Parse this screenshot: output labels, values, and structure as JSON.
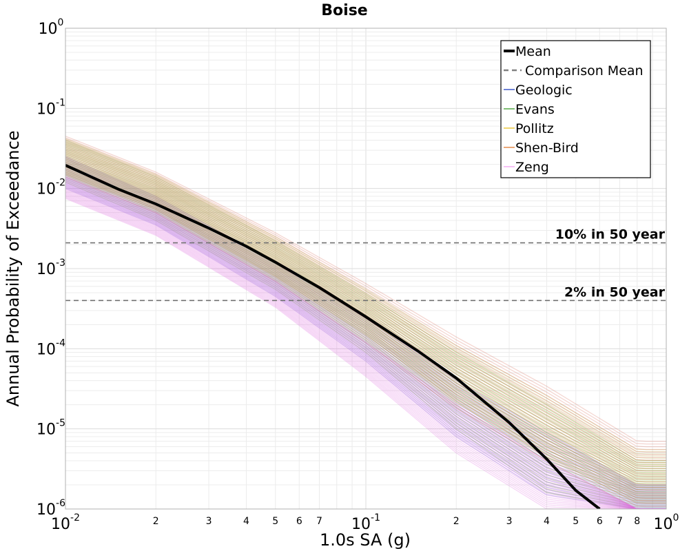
{
  "chart_data": {
    "type": "line",
    "title": "Boise",
    "xlabel": "1.0s SA (g)",
    "ylabel": "Annual Probability of Exceedance",
    "xscale": "log",
    "yscale": "log",
    "xlim": [
      0.01,
      1.0
    ],
    "ylim": [
      1e-06,
      1.0
    ],
    "grid": true,
    "legend_position": "top-right",
    "x_major_ticks": [
      {
        "value": 0.01,
        "base": "10",
        "exp": "-2"
      },
      {
        "value": 0.1,
        "base": "10",
        "exp": "-1"
      },
      {
        "value": 1.0,
        "base": "10",
        "exp": "0"
      }
    ],
    "x_minor_ticks": [
      {
        "value": 0.02,
        "label": "2"
      },
      {
        "value": 0.03,
        "label": "3"
      },
      {
        "value": 0.04,
        "label": "4"
      },
      {
        "value": 0.05,
        "label": "5"
      },
      {
        "value": 0.06,
        "label": "6"
      },
      {
        "value": 0.07,
        "label": "7"
      },
      {
        "value": 0.2,
        "label": "2"
      },
      {
        "value": 0.3,
        "label": "3"
      },
      {
        "value": 0.4,
        "label": "4"
      },
      {
        "value": 0.5,
        "label": "5"
      },
      {
        "value": 0.6,
        "label": "6"
      },
      {
        "value": 0.7,
        "label": "7"
      },
      {
        "value": 0.8,
        "label": "8"
      }
    ],
    "y_major_ticks": [
      {
        "value": 1.0,
        "base": "10",
        "exp": "0"
      },
      {
        "value": 0.1,
        "base": "10",
        "exp": "-1"
      },
      {
        "value": 0.01,
        "base": "10",
        "exp": "-2"
      },
      {
        "value": 0.001,
        "base": "10",
        "exp": "-3"
      },
      {
        "value": 0.0001,
        "base": "10",
        "exp": "-4"
      },
      {
        "value": 1e-05,
        "base": "10",
        "exp": "-5"
      },
      {
        "value": 1e-06,
        "base": "10",
        "exp": "-6"
      }
    ],
    "reference_lines": [
      {
        "label": "10% in 50 year",
        "y": 0.0021
      },
      {
        "label": "2% in 50 year",
        "y": 0.0004
      }
    ],
    "mean_curve": {
      "name": "Mean",
      "color": "#000000",
      "x": [
        0.01,
        0.015,
        0.02,
        0.03,
        0.04,
        0.05,
        0.07,
        0.1,
        0.15,
        0.2,
        0.3,
        0.4,
        0.5,
        0.6
      ],
      "y": [
        0.0195,
        0.0098,
        0.0064,
        0.0032,
        0.0019,
        0.0012,
        0.00058,
        0.00025,
        9.2e-05,
        4.3e-05,
        1.2e-05,
        4.2e-06,
        1.7e-06,
        1e-06
      ]
    },
    "series": [
      {
        "name": "Geologic",
        "color": "#1f3fbf",
        "band_color": "#6a4fd8",
        "upper": [
          0.025,
          0.008,
          0.0012,
          0.00025,
          4e-05,
          9e-06,
          2e-06
        ],
        "lower": [
          0.01,
          0.0035,
          0.00045,
          7e-05,
          8e-06,
          1.5e-06,
          1e-06
        ]
      },
      {
        "name": "Evans",
        "color": "#3a9a2a",
        "band_color": "#6fa83a",
        "upper": [
          0.04,
          0.014,
          0.0022,
          0.00048,
          9e-05,
          2e-05,
          4e-06
        ],
        "lower": [
          0.012,
          0.004,
          0.00055,
          9e-05,
          1e-05,
          1.6e-06,
          1e-06
        ]
      },
      {
        "name": "Pollitz",
        "color": "#e8c020",
        "band_color": "#b0a030",
        "upper": [
          0.042,
          0.015,
          0.0025,
          0.00055,
          0.00011,
          2.6e-05,
          5.5e-06
        ],
        "lower": [
          0.015,
          0.0055,
          0.0008,
          0.00015,
          2.2e-05,
          4.5e-06,
          1.2e-06
        ]
      },
      {
        "name": "Shen-Bird",
        "color": "#e07a30",
        "band_color": "#d86a5a",
        "upper": [
          0.045,
          0.016,
          0.0028,
          0.00065,
          0.00014,
          3.4e-05,
          7e-06
        ],
        "lower": [
          0.014,
          0.005,
          0.0007,
          0.00012,
          1.8e-05,
          4e-06,
          1e-06
        ]
      },
      {
        "name": "Zeng",
        "color": "#f0a0f0",
        "band_color": "#e070e0",
        "upper": [
          0.014,
          0.005,
          0.0007,
          0.00012,
          2e-05,
          4e-06,
          1e-06
        ],
        "lower": [
          0.0075,
          0.0026,
          0.00033,
          4.5e-05,
          5e-06,
          1e-06,
          1e-06
        ]
      }
    ],
    "band_x": [
      0.01,
      0.02,
      0.05,
      0.1,
      0.2,
      0.4,
      0.8
    ],
    "legend": [
      {
        "label": "Mean",
        "style": "thick-solid",
        "color": "#000000"
      },
      {
        "label": "Comparison Mean",
        "style": "dashed",
        "color": "#808080"
      },
      {
        "label": "Geologic",
        "style": "thin-solid",
        "color": "#1f3fbf"
      },
      {
        "label": "Evans",
        "style": "thin-solid",
        "color": "#3a9a2a"
      },
      {
        "label": "Pollitz",
        "style": "thin-solid",
        "color": "#e8c020"
      },
      {
        "label": "Shen-Bird",
        "style": "thin-solid",
        "color": "#e07a30"
      },
      {
        "label": "Zeng",
        "style": "thin-solid",
        "color": "#f0a0f0"
      }
    ]
  }
}
